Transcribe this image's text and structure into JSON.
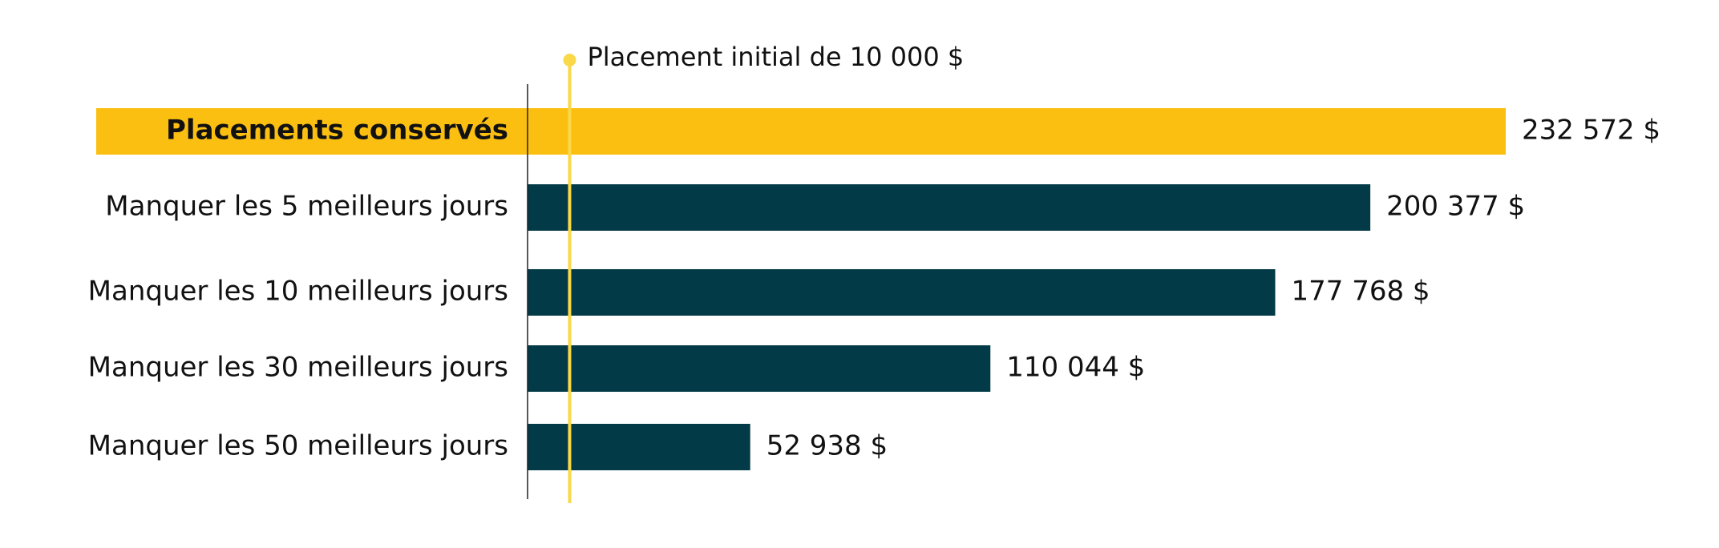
{
  "chart_data": {
    "type": "bar",
    "orientation": "horizontal",
    "categories": [
      "Placements conservés",
      "Manquer les 5 meilleurs jours",
      "Manquer les 10 meilleurs jours",
      "Manquer les 30 meilleurs jours",
      "Manquer les 50 meilleurs jours"
    ],
    "values": [
      232572,
      200377,
      177768,
      110044,
      52938
    ],
    "value_labels": [
      "232 572 $",
      "200 377 $",
      "177 768 $",
      "110 044 $",
      "52 938 $"
    ],
    "colors": [
      "#fbbf12",
      "#033a47",
      "#033a47",
      "#033a47",
      "#033a47"
    ],
    "highlight": 0,
    "reference_line": {
      "value": 10000,
      "label": "Placement initial de 10 000 $",
      "color": "#f9d84a"
    }
  }
}
